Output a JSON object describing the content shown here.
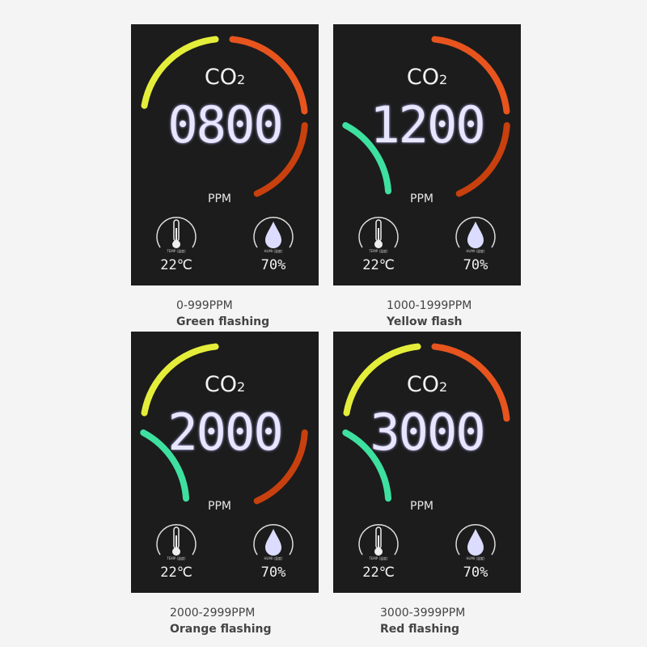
{
  "panels": [
    {
      "title": "CO",
      "sub": "2",
      "reading": "0800",
      "unit": "PPM",
      "temp_label": "TEMP (温度)",
      "temp": "22℃",
      "humi_label": "HUMI (湿度)",
      "humi": "70%",
      "range": "0-999PPM",
      "mode": "Green flashing",
      "arcs": [
        "yellow",
        "orange",
        "red"
      ]
    },
    {
      "title": "CO",
      "sub": "2",
      "reading": "1200",
      "unit": "PPM",
      "temp_label": "TEMP (温度)",
      "temp": "22℃",
      "humi_label": "HUMI (湿度)",
      "humi": "70%",
      "range": "1000-1999PPM",
      "mode": "Yellow flash",
      "arcs": [
        "green",
        "orange",
        "red"
      ]
    },
    {
      "title": "CO",
      "sub": "2",
      "reading": "2000",
      "unit": "PPM",
      "temp_label": "TEMP (温度)",
      "temp": "22℃",
      "humi_label": "HUMI (湿度)",
      "humi": "70%",
      "range": "2000-2999PPM",
      "mode": "Orange flashing",
      "arcs": [
        "yellow",
        "green",
        "red"
      ]
    },
    {
      "title": "CO",
      "sub": "2",
      "reading": "3000",
      "unit": "PPM",
      "temp_label": "TEMP (温度)",
      "temp": "22℃",
      "humi_label": "HUMI (湿度)",
      "humi": "70%",
      "range": "3000-3999PPM",
      "mode": "Red flashing",
      "arcs": [
        "yellow",
        "orange",
        "green"
      ]
    }
  ],
  "colors": {
    "yellow": "#e4ee3a",
    "orange": "#e8541e",
    "red": "#c8400e",
    "green": "#3ee0a0",
    "digits": "#e8e6ff"
  }
}
